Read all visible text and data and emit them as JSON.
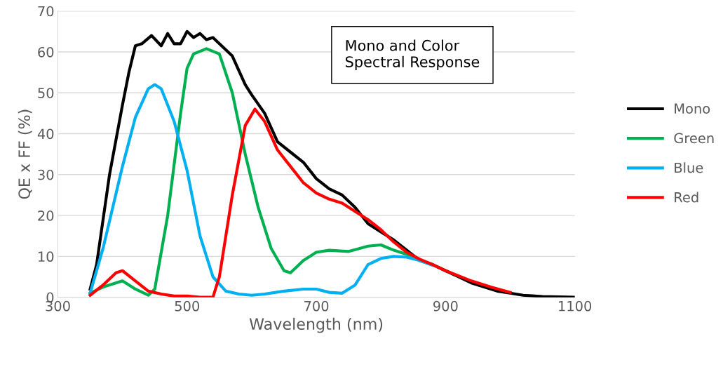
{
  "chart_data": {
    "type": "line",
    "xlabel": "Wavelength (nm)",
    "ylabel": "QE x FF (%)",
    "xlim": [
      300,
      1100
    ],
    "xticks": [
      300,
      500,
      700,
      900,
      1100
    ],
    "ylim": [
      0,
      70
    ],
    "yticks": [
      0,
      10,
      20,
      30,
      40,
      50,
      60,
      70
    ],
    "grid": "y",
    "legend": "right",
    "line_style": "solid",
    "marker": "none",
    "annotations": [
      "Mono and Color\nSpectral Response"
    ],
    "series": [
      {
        "name": "Mono",
        "color": "#000000",
        "x": [
          350,
          360,
          380,
          400,
          410,
          420,
          430,
          445,
          460,
          470,
          480,
          490,
          500,
          510,
          520,
          530,
          540,
          550,
          570,
          590,
          600,
          620,
          640,
          660,
          680,
          700,
          720,
          740,
          760,
          780,
          800,
          820,
          840,
          860,
          880,
          900,
          920,
          940,
          960,
          980,
          1000,
          1020,
          1050,
          1100
        ],
        "values": [
          2,
          8,
          30,
          47,
          55,
          61.5,
          62,
          64,
          61.5,
          64.5,
          62,
          62,
          65,
          63.5,
          64.5,
          63,
          63.5,
          62,
          59,
          52,
          49.5,
          45,
          38,
          35.5,
          33,
          29,
          26.5,
          25,
          22,
          18,
          16,
          14,
          11.5,
          9,
          8,
          6.5,
          5,
          3.5,
          2.5,
          1.5,
          1,
          0.5,
          0.2,
          0
        ]
      },
      {
        "name": "Green",
        "color": "#00b050",
        "x": [
          350,
          370,
          400,
          420,
          440,
          450,
          470,
          490,
          500,
          510,
          530,
          550,
          570,
          590,
          610,
          630,
          650,
          660,
          680,
          700,
          720,
          750,
          780,
          800,
          820,
          840,
          860,
          880
        ],
        "values": [
          1,
          2.5,
          4,
          2,
          0.5,
          2,
          20,
          45,
          56,
          59.5,
          60.8,
          59.5,
          50,
          35,
          22,
          12,
          6.5,
          6,
          9,
          11,
          11.5,
          11.2,
          12.5,
          12.8,
          11.5,
          10.5,
          9,
          8
        ]
      },
      {
        "name": "Blue",
        "color": "#00b0f0",
        "x": [
          350,
          370,
          400,
          420,
          440,
          450,
          460,
          480,
          500,
          520,
          540,
          560,
          580,
          600,
          620,
          650,
          680,
          700,
          720,
          740,
          760,
          780,
          800,
          820,
          840,
          860,
          880
        ],
        "values": [
          1,
          12,
          32,
          44,
          51,
          52,
          51,
          43,
          31,
          15,
          5,
          1.5,
          0.8,
          0.5,
          0.8,
          1.5,
          2,
          2,
          1.2,
          1,
          3,
          8,
          9.5,
          10,
          9.8,
          9,
          7.8
        ]
      },
      {
        "name": "Red",
        "color": "#ff0000",
        "x": [
          350,
          370,
          390,
          400,
          420,
          440,
          460,
          480,
          500,
          520,
          540,
          550,
          570,
          590,
          605,
          620,
          640,
          660,
          680,
          700,
          720,
          740,
          760,
          780,
          800,
          820,
          840,
          860,
          880,
          900,
          940,
          970,
          1000
        ],
        "values": [
          0.5,
          3,
          6,
          6.5,
          4,
          1.5,
          0.8,
          0.3,
          0.3,
          0,
          0,
          5,
          25,
          42,
          46,
          43,
          36,
          32,
          28,
          25.5,
          24,
          23,
          21,
          19,
          16.5,
          13.5,
          11,
          9.3,
          8,
          6.5,
          4,
          2.5,
          1.2
        ]
      }
    ]
  }
}
